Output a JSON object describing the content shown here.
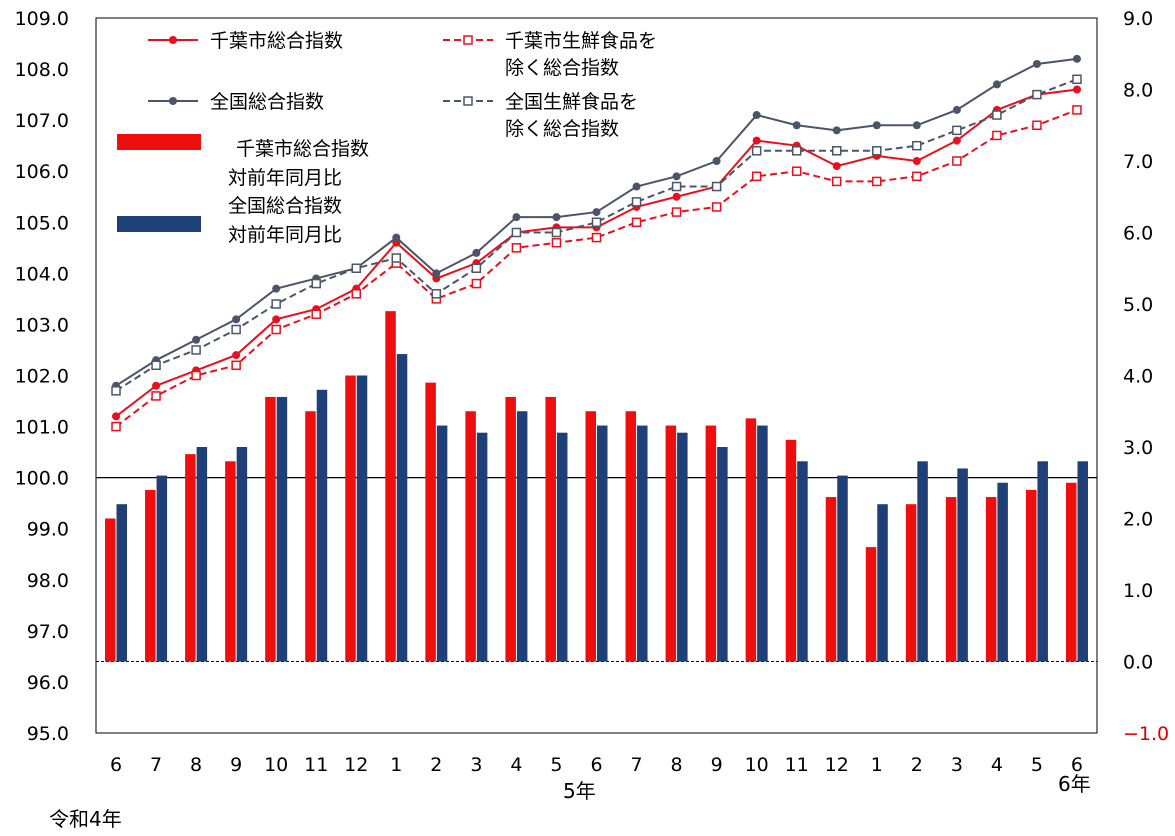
{
  "chart_data": {
    "type": "bar+line",
    "categories": [
      "6",
      "7",
      "8",
      "9",
      "10",
      "11",
      "12",
      "1",
      "2",
      "3",
      "4",
      "5",
      "6",
      "7",
      "8",
      "9",
      "10",
      "11",
      "12",
      "1",
      "2",
      "3",
      "4",
      "5",
      "6"
    ],
    "era_labels": [
      "令和4年",
      "5年",
      "6年"
    ],
    "left_axis": {
      "ylim": [
        95.0,
        109.0
      ],
      "ticks": [
        "95.0",
        "96.0",
        "97.0",
        "98.0",
        "99.0",
        "100.0",
        "101.0",
        "102.0",
        "103.0",
        "104.0",
        "105.0",
        "106.0",
        "107.0",
        "108.0",
        "109.0"
      ]
    },
    "right_axis": {
      "ylim": [
        -1.0,
        9.0
      ],
      "ticks": [
        "−1.0",
        "0.0",
        "1.0",
        "2.0",
        "3.0",
        "4.0",
        "5.0",
        "6.0",
        "7.0",
        "8.0",
        "9.0"
      ]
    },
    "line_series": [
      {
        "name": "千葉市総合指数",
        "color": "#e8101e",
        "style": "solid",
        "marker": "dot",
        "values": [
          101.2,
          101.8,
          102.1,
          102.4,
          103.1,
          103.3,
          103.7,
          104.6,
          103.9,
          104.2,
          104.8,
          104.9,
          104.9,
          105.3,
          105.5,
          105.7,
          106.6,
          106.5,
          106.1,
          106.3,
          106.2,
          106.6,
          107.2,
          107.5,
          107.6
        ]
      },
      {
        "name": "千葉市生鮮食品を除く総合指数",
        "color": "#e8101e",
        "style": "dashed",
        "marker": "square",
        "values": [
          101.0,
          101.6,
          102.0,
          102.2,
          102.9,
          103.2,
          103.6,
          104.2,
          103.5,
          103.8,
          104.5,
          104.6,
          104.7,
          105.0,
          105.2,
          105.3,
          105.9,
          106.0,
          105.8,
          105.8,
          105.9,
          106.2,
          106.7,
          106.9,
          107.2
        ]
      },
      {
        "name": "全国総合指数",
        "color": "#4a5668",
        "style": "solid",
        "marker": "dot",
        "values": [
          101.8,
          102.3,
          102.7,
          103.1,
          103.7,
          103.9,
          104.1,
          104.7,
          104.0,
          104.4,
          105.1,
          105.1,
          105.2,
          105.7,
          105.9,
          106.2,
          107.1,
          106.9,
          106.8,
          106.9,
          106.9,
          107.2,
          107.7,
          108.1,
          108.2
        ]
      },
      {
        "name": "全国生鮮食品を除く総合指数",
        "color": "#4a5668",
        "style": "dashed",
        "marker": "square",
        "values": [
          101.7,
          102.2,
          102.5,
          102.9,
          103.4,
          103.8,
          104.1,
          104.3,
          103.6,
          104.1,
          104.8,
          104.8,
          105.0,
          105.4,
          105.7,
          105.7,
          106.4,
          106.4,
          106.4,
          106.4,
          106.5,
          106.8,
          107.1,
          107.5,
          107.8
        ]
      }
    ],
    "bar_series": [
      {
        "name": "千葉市総合指数対前年同月比",
        "color": "#ee0e0e",
        "values": [
          2.0,
          2.4,
          2.9,
          2.8,
          3.7,
          3.5,
          4.0,
          4.9,
          3.9,
          3.5,
          3.7,
          3.7,
          3.5,
          3.5,
          3.3,
          3.3,
          3.4,
          3.1,
          2.3,
          1.6,
          2.2,
          2.3,
          2.3,
          2.4,
          2.5
        ]
      },
      {
        "name": "全国総合指数対前年同月比",
        "color": "#1f3f77",
        "values": [
          2.2,
          2.6,
          3.0,
          3.0,
          3.7,
          3.8,
          4.0,
          4.3,
          3.3,
          3.2,
          3.5,
          3.2,
          3.3,
          3.3,
          3.2,
          3.0,
          3.3,
          2.8,
          2.6,
          2.2,
          2.8,
          2.7,
          2.5,
          2.8,
          2.8
        ]
      }
    ],
    "legend": {
      "line_labels": [
        [
          "千葉市総合指数"
        ],
        [
          "千葉市生鮮食品を",
          "除く総合指数"
        ],
        [
          "全国総合指数"
        ],
        [
          "全国生鮮食品を",
          "除く総合指数"
        ]
      ],
      "bar_labels": [
        [
          "千葉市総合指数",
          "対前年同月比"
        ],
        [
          "全国総合指数",
          "対前年同月比"
        ]
      ]
    },
    "colors": {
      "red": "#e8101e",
      "navy": "#1f3f77",
      "slate": "#4a5668",
      "negative_tick": "#e00000"
    }
  }
}
